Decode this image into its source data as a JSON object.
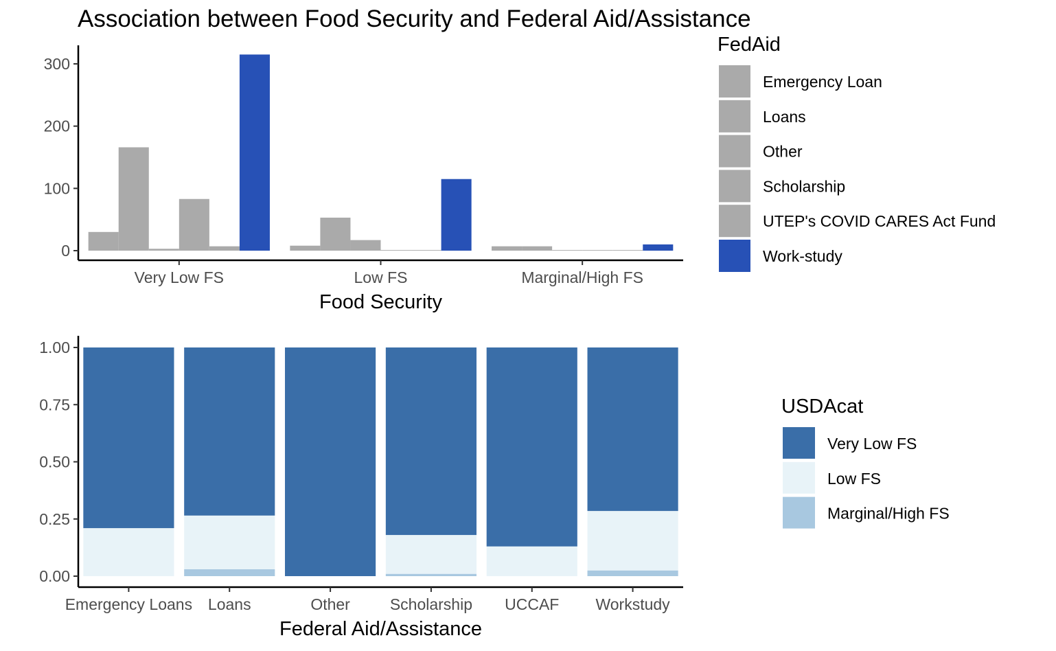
{
  "title": "Association between Food Security and Federal Aid/Assistance",
  "chart_data": [
    {
      "type": "bar",
      "xlabel": "Food Security",
      "ylabel": "",
      "ylim": [
        0,
        330
      ],
      "yticks": [
        0,
        100,
        200,
        300
      ],
      "categories": [
        "Very Low FS",
        "Low FS",
        "Marginal/High FS"
      ],
      "legend_title": "FedAid",
      "legend_position": "right",
      "grid": false,
      "series": [
        {
          "name": "Emergency Loan",
          "color": "#aaaaaa",
          "values": [
            30,
            8,
            7
          ]
        },
        {
          "name": "Loans",
          "color": "#aaaaaa",
          "values": [
            166,
            53,
            7
          ]
        },
        {
          "name": "Other",
          "color": "#aaaaaa",
          "values": [
            3,
            17,
            1
          ]
        },
        {
          "name": "Scholarship",
          "color": "#aaaaaa",
          "values": [
            83,
            1,
            1
          ]
        },
        {
          "name": "UTEP's COVID CARES Act Fund",
          "color": "#aaaaaa",
          "values": [
            7,
            1,
            1
          ]
        },
        {
          "name": "Work-study",
          "color": "#2751b6",
          "values": [
            315,
            115,
            10
          ]
        }
      ]
    },
    {
      "type": "bar",
      "stacked": true,
      "xlabel": "Federal Aid/Assistance",
      "ylabel": "",
      "ylim": [
        0,
        1
      ],
      "yticks": [
        "0.00",
        "0.25",
        "0.50",
        "0.75",
        "1.00"
      ],
      "categories": [
        "Emergency Loans",
        "Loans",
        "Other",
        "Scholarship",
        "UCCAF",
        "Workstudy"
      ],
      "legend_title": "USDAcat",
      "legend_position": "right",
      "grid": false,
      "series": [
        {
          "name": "Very Low FS",
          "color": "#3a6ea8",
          "values": [
            0.79,
            0.735,
            1.0,
            0.82,
            0.87,
            0.715
          ]
        },
        {
          "name": "Low FS",
          "color": "#e8f3f8",
          "values": [
            0.21,
            0.235,
            0.0,
            0.17,
            0.13,
            0.26
          ]
        },
        {
          "name": "Marginal/High FS",
          "color": "#a8c8e0",
          "values": [
            0.0,
            0.03,
            0.0,
            0.01,
            0.0,
            0.025
          ]
        }
      ]
    }
  ]
}
